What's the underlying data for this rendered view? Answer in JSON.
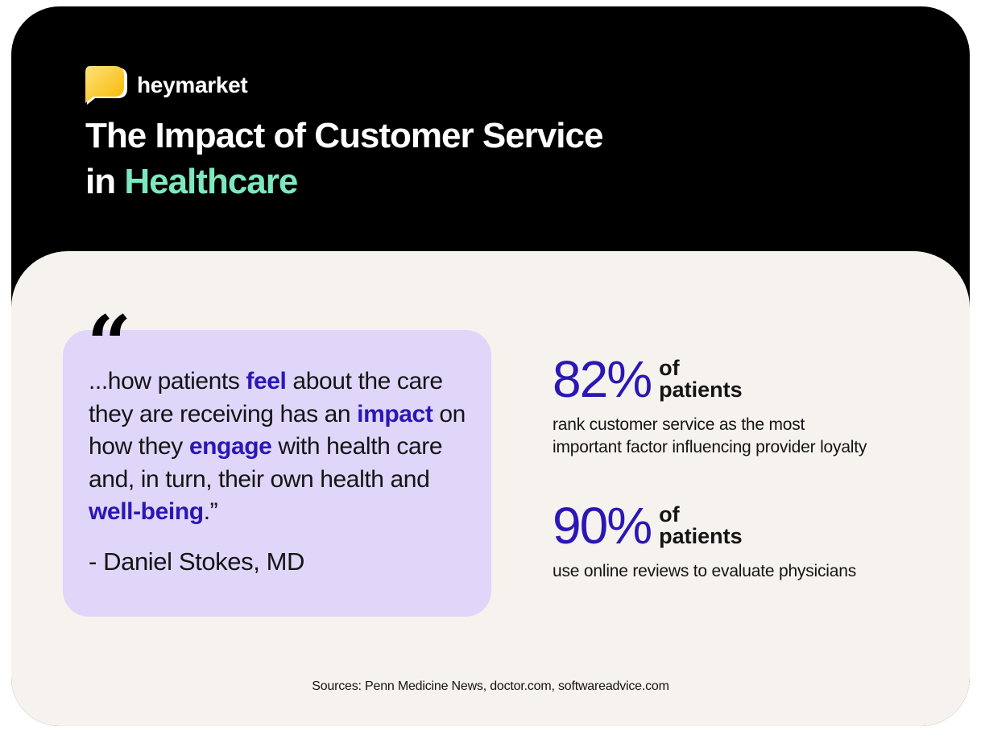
{
  "brand": {
    "name": "heymarket",
    "logo_icon": "chat-bubble-logo-icon",
    "logo_color": "#ffd12e"
  },
  "title": {
    "line1": "The Impact of Customer Service",
    "line2_prefix": "in",
    "line2_accent": "Healthcare",
    "accent_color": "#7de8be"
  },
  "quote": {
    "open_mark": "“",
    "segments": [
      {
        "text": "...how patients ",
        "highlight": false
      },
      {
        "text": "feel",
        "highlight": true
      },
      {
        "text": " about the care they are receiving has an ",
        "highlight": false
      },
      {
        "text": "impact",
        "highlight": true
      },
      {
        "text": " on how they ",
        "highlight": false
      },
      {
        "text": "engage",
        "highlight": true
      },
      {
        "text": " with health care and, in turn, their own health and ",
        "highlight": false
      },
      {
        "text": "well-being",
        "highlight": true
      },
      {
        "text": ".”",
        "highlight": false
      }
    ],
    "author": "- Daniel Stokes, MD",
    "box_color": "#dfd6fa",
    "highlight_color": "#2a17b5"
  },
  "stats": [
    {
      "value": "82%",
      "of": "of",
      "unit": "patients",
      "description_line1": "rank customer service as the most",
      "description_line2": "important factor influencing provider loyalty"
    },
    {
      "value": "90%",
      "of": "of",
      "unit": "patients",
      "description_line1": "use online reviews to evaluate physicians"
    }
  ],
  "sources": "Sources: Penn Medicine News, doctor.com, softwareadvice.com"
}
